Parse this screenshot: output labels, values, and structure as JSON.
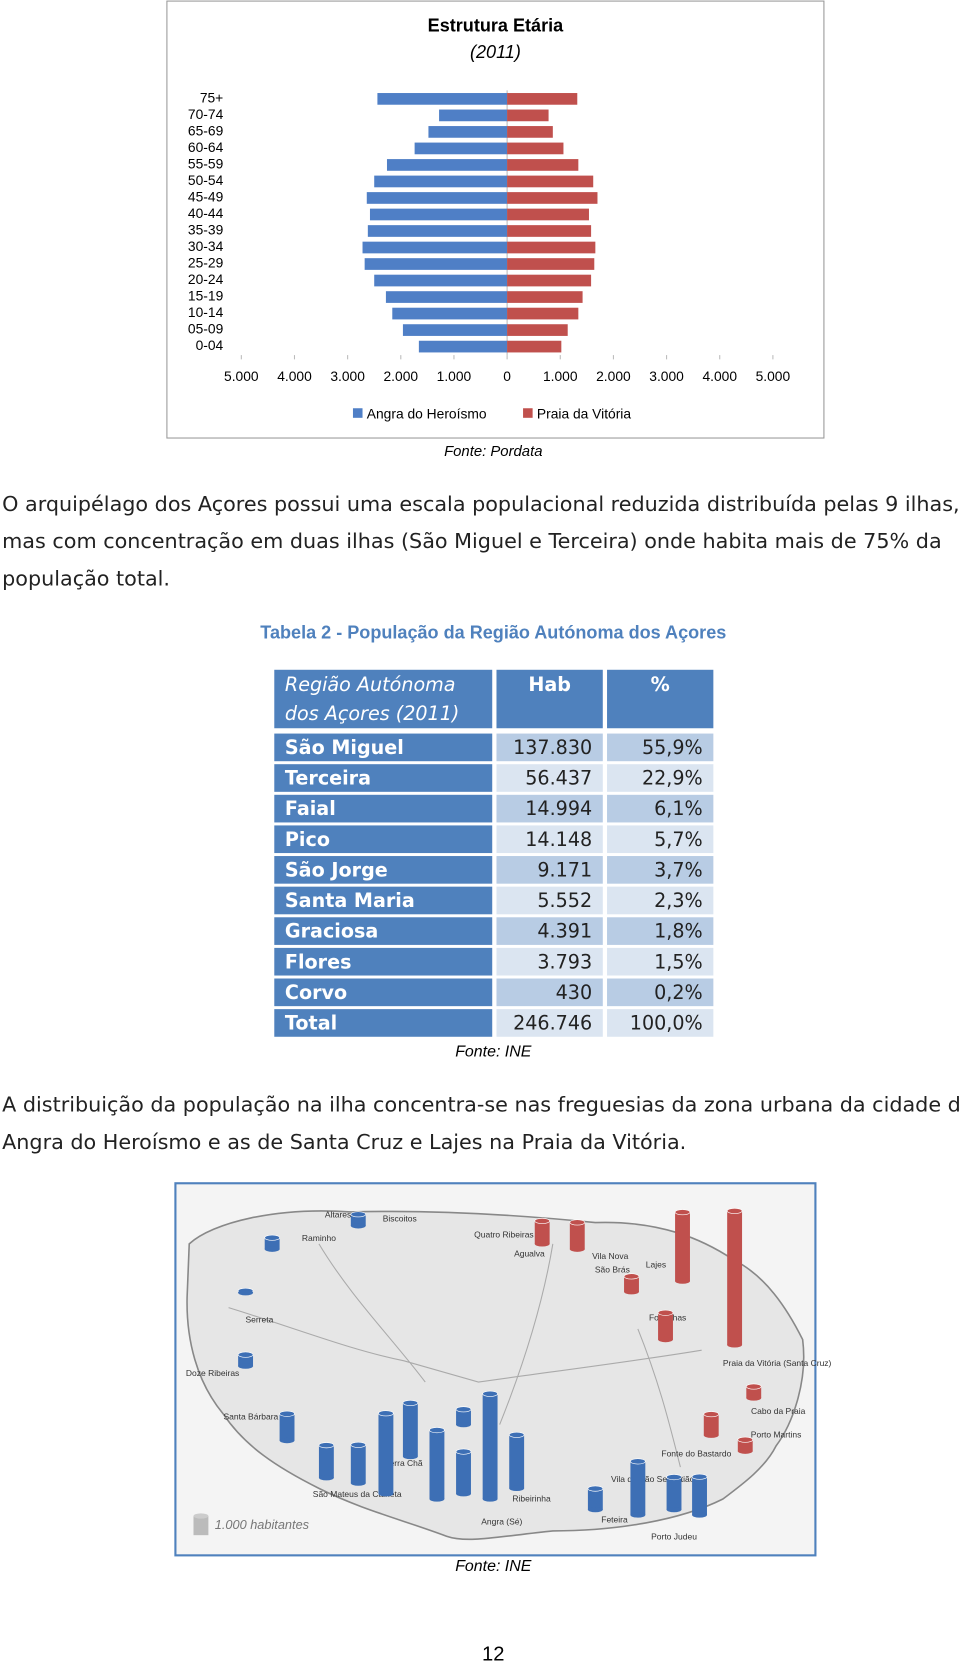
{
  "chart_data": {
    "type": "pyramid",
    "title": "Estrutura Etária",
    "subtitle": "(2011)",
    "categories": [
      "0-04",
      "05-09",
      "10-14",
      "15-19",
      "20-24",
      "25-29",
      "30-34",
      "35-39",
      "40-44",
      "45-49",
      "50-54",
      "55-59",
      "60-64",
      "65-69",
      "70-74",
      "75+"
    ],
    "series": [
      {
        "name": "Angra do Heroísmo",
        "color": "#4f7fc6",
        "values": [
          1660,
          1960,
          2160,
          2280,
          2500,
          2680,
          2720,
          2620,
          2580,
          2640,
          2500,
          2260,
          1740,
          1480,
          1280,
          2440
        ]
      },
      {
        "name": "Praia da Vitória",
        "color": "#c0504d",
        "values": [
          1020,
          1140,
          1340,
          1420,
          1580,
          1640,
          1660,
          1580,
          1540,
          1700,
          1620,
          1340,
          1060,
          860,
          780,
          1320
        ]
      }
    ],
    "xlim": [
      -5000,
      5000
    ],
    "xticks": [
      {
        "value": -5000,
        "label": "5.000"
      },
      {
        "value": -4000,
        "label": "4.000"
      },
      {
        "value": -3000,
        "label": "3.000"
      },
      {
        "value": -2000,
        "label": "2.000"
      },
      {
        "value": -1000,
        "label": "1.000"
      },
      0,
      {
        "value": 1000,
        "label": "1.000"
      },
      {
        "value": 2000,
        "label": "2.000"
      },
      {
        "value": 3000,
        "label": "3.000"
      },
      {
        "value": 4000,
        "label": "4.000"
      },
      {
        "value": 5000,
        "label": "5.000"
      }
    ],
    "legend": "bottom",
    "source": "Fonte: Pordata"
  },
  "paragraphs": [
    [
      "O arquipélago dos Açores possui uma escala populacional reduzida distribuída pelas 9 ilhas,",
      "mas com concentração em duas ilhas (São Miguel e Terceira) onde habita mais de 75% da",
      "população total."
    ],
    [
      "A distribuição da população na ilha concentra-se nas freguesias da zona urbana da cidade de",
      "Angra do Heroísmo e as de Santa Cruz e Lajes na Praia da Vitória."
    ]
  ],
  "table": {
    "caption": "Tabela 2 - População da Região Autónoma dos Açores",
    "header": [
      [
        "Região Autónoma",
        "dos Açores (2011)"
      ],
      "Hab",
      "%"
    ],
    "rows": [
      [
        "São Miguel",
        "137.830",
        "55,9%"
      ],
      [
        "Terceira",
        "56.437",
        "22,9%"
      ],
      [
        "Faial",
        "14.994",
        "6,1%"
      ],
      [
        "Pico",
        "14.148",
        "5,7%"
      ],
      [
        "São Jorge",
        "9.171",
        "3,7%"
      ],
      [
        "Santa Maria",
        "5.552",
        "2,3%"
      ],
      [
        "Graciosa",
        "4.391",
        "1,8%"
      ],
      [
        "Flores",
        "3.793",
        "1,5%"
      ],
      [
        "Corvo",
        "430",
        "0,2%"
      ],
      [
        "Total",
        "246.746",
        "100,0%"
      ]
    ],
    "source": "Fonte: INE"
  },
  "map": {
    "labels": [
      "Altares",
      "Biscoitos",
      "Raminho",
      "Quatro Ribeiras",
      "Agualva",
      "Vila Nova",
      "São Brás",
      "Lajes",
      "Serreta",
      "Fontinhas",
      "Doze Ribeiras",
      "Praia da Vitória (Santa Cruz)",
      "Santa Bárbara",
      "Cabo da Praia",
      "Fonte do Bastardo",
      "Porto Martins",
      "Terra Chã",
      "São Mateus da Calheta",
      "Ribeirinha",
      "Angra (Sé)",
      "Feteira",
      "Vila de São Sebastião",
      "Porto Judeu"
    ],
    "legend": "1.000 habitantes",
    "bars": [
      600,
      600,
      100,
      600,
      1400,
      1700,
      2000,
      4200,
      2800,
      3600,
      800,
      2200,
      5500,
      2800,
      1100,
      2800,
      1700,
      2000,
      1200,
      1400,
      800,
      1400,
      3600,
      7000,
      600,
      1100,
      600
    ],
    "colors": {
      "Angra do Heroísmo": "#3d6fb5",
      "Praia da Vitória": "#c0504d"
    },
    "source": "Fonte: INE"
  },
  "page_number": "12"
}
